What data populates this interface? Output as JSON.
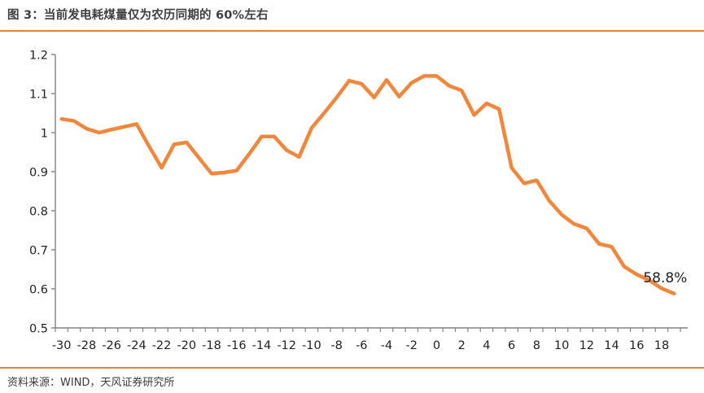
{
  "title": "图 3：当前发电耗煤量仅为农历同期的 60%左右",
  "source": "资料来源：WIND，天风证券研究所",
  "colors": {
    "accent_orange": "#ED7D31",
    "line_orange": "#F2873C",
    "axis_gray": "#828282",
    "title_text": "#3F3F3F",
    "tick_text": "#1F1F1F"
  },
  "chart_data": {
    "type": "line",
    "title": "图 3：当前发电耗煤量仅为农历同期的 60%左右",
    "xlabel": "",
    "ylabel": "",
    "grid": false,
    "legend": null,
    "ylim": [
      0.5,
      1.2
    ],
    "yticks": [
      1.2,
      1.1,
      1,
      0.9,
      0.8,
      0.7,
      0.6,
      0.5
    ],
    "ytick_labels": [
      "1.2",
      "1.1",
      "1",
      "0.9",
      "0.8",
      "0.7",
      "0.6",
      "0.5"
    ],
    "xticks": [
      -30,
      -28,
      -26,
      -24,
      -22,
      -20,
      -18,
      -16,
      -14,
      -12,
      -10,
      -8,
      -6,
      -4,
      -2,
      0,
      2,
      4,
      6,
      8,
      10,
      12,
      14,
      16,
      18
    ],
    "xtick_labels": [
      "-30",
      "-28",
      "-26",
      "-24",
      "-22",
      "-20",
      "-18",
      "-16",
      "-14",
      "-12",
      "-10",
      "-8",
      "-6",
      "-4",
      "-2",
      "0",
      "2",
      "4",
      "6",
      "8",
      "10",
      "12",
      "14",
      "16",
      "18"
    ],
    "x": [
      -30,
      -29,
      -28,
      -27,
      -26,
      -25,
      -24,
      -23,
      -22,
      -21,
      -20,
      -19,
      -18,
      -17,
      -16,
      -15,
      -14,
      -13,
      -12,
      -11,
      -10,
      -9,
      -8,
      -7,
      -6,
      -5,
      -4,
      -3,
      -2,
      -1,
      0,
      1,
      2,
      3,
      4,
      5,
      6,
      7,
      8,
      9,
      10,
      11,
      12,
      13,
      14,
      15,
      16,
      17,
      18,
      19
    ],
    "values": [
      1.035,
      1.03,
      1.01,
      1.0,
      1.008,
      1.015,
      1.022,
      0.965,
      0.91,
      0.97,
      0.975,
      0.935,
      0.895,
      0.898,
      0.903,
      0.945,
      0.99,
      0.99,
      0.955,
      0.938,
      1.012,
      1.05,
      1.09,
      1.133,
      1.125,
      1.09,
      1.135,
      1.092,
      1.128,
      1.145,
      1.145,
      1.12,
      1.108,
      1.045,
      1.075,
      1.06,
      0.91,
      0.87,
      0.878,
      0.826,
      0.79,
      0.766,
      0.755,
      0.715,
      0.708,
      0.657,
      0.637,
      0.622,
      0.601,
      0.588
    ],
    "annotation": {
      "text": "58.8%",
      "x": 19,
      "value": 0.588
    }
  }
}
